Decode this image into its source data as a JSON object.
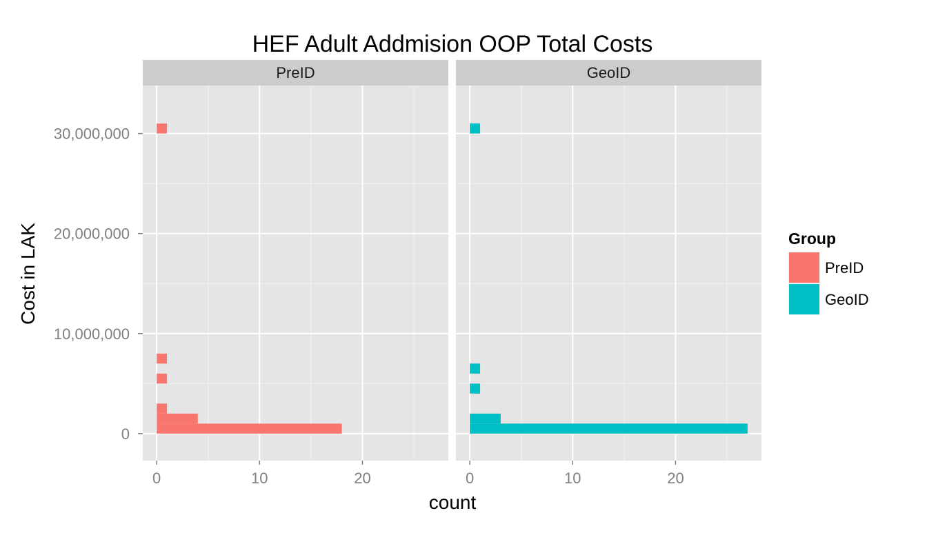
{
  "chart_data": {
    "type": "bar",
    "orientation": "horizontal",
    "title": "HEF Adult Addmision OOP Total Costs",
    "xlabel": "count",
    "ylabel": "Cost in LAK",
    "xlim": [
      -1.35,
      28.35
    ],
    "ylim": [
      -2700000,
      34800000
    ],
    "x_ticks": [
      0,
      10,
      20
    ],
    "x_tick_labels": [
      "0",
      "10",
      "20"
    ],
    "y_ticks": [
      0,
      10000000,
      20000000,
      30000000
    ],
    "y_tick_labels": [
      "0",
      "10,000,000",
      "20,000,000",
      "30,000,000"
    ],
    "grid": true,
    "legend": {
      "title": "Group",
      "position": "right",
      "items": [
        {
          "label": "PreID",
          "color": "#F8766D"
        },
        {
          "label": "GeoID",
          "color": "#00BFC4"
        }
      ]
    },
    "bin_width": 1000000,
    "facets": [
      {
        "label": "PreID",
        "color": "#F8766D",
        "bins": [
          {
            "y": 0,
            "count": 18
          },
          {
            "y": 1000000,
            "count": 4
          },
          {
            "y": 2000000,
            "count": 1
          },
          {
            "y": 5000000,
            "count": 1
          },
          {
            "y": 7000000,
            "count": 1
          },
          {
            "y": 30000000,
            "count": 1
          }
        ]
      },
      {
        "label": "GeoID",
        "color": "#00BFC4",
        "bins": [
          {
            "y": 0,
            "count": 27
          },
          {
            "y": 1000000,
            "count": 3
          },
          {
            "y": 4000000,
            "count": 1
          },
          {
            "y": 6000000,
            "count": 1
          },
          {
            "y": 30000000,
            "count": 1
          }
        ]
      }
    ]
  }
}
